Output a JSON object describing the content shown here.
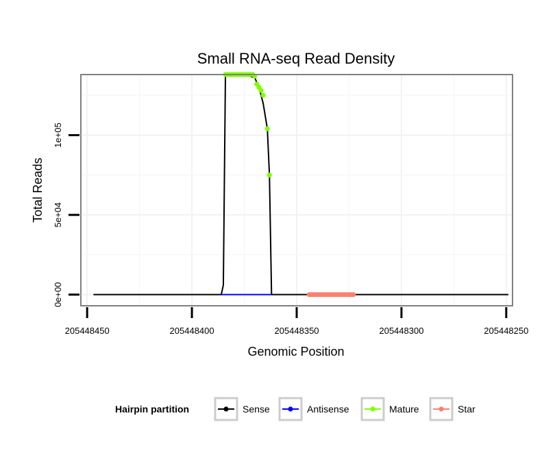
{
  "chart_data": {
    "type": "line",
    "title": "Small RNA-seq Read Density",
    "xlabel": "Genomic Position",
    "ylabel": "Total Reads",
    "xlim": [
      205448453,
      205448247
    ],
    "ylim": [
      -7000,
      138000
    ],
    "x_reversed": true,
    "x_ticks": [
      205448450,
      205448400,
      205448350,
      205448300,
      205448250
    ],
    "x_tick_labels": [
      "205448450",
      "205448400",
      "205448350",
      "205448300",
      "205448250"
    ],
    "y_ticks": [
      0,
      50000,
      100000
    ],
    "y_tick_labels": [
      "0e+00",
      "5e+04",
      "1e+05"
    ],
    "grid": true,
    "legend": {
      "title": "Hairpin partition",
      "position": "bottom",
      "entries": [
        {
          "label": "Sense",
          "color": "#000000"
        },
        {
          "label": "Antisense",
          "color": "#0000ff"
        },
        {
          "label": "Mature",
          "color": "#7fff00"
        },
        {
          "label": "Star",
          "color": "#fa8072"
        }
      ]
    },
    "series": [
      {
        "name": "Sense",
        "color": "#000000",
        "mode": "line",
        "points": [
          [
            205448447,
            0
          ],
          [
            205448386,
            0
          ],
          [
            205448385,
            6000
          ],
          [
            205448384,
            138000
          ],
          [
            205448375,
            138000
          ],
          [
            205448370,
            136000
          ],
          [
            205448368,
            130000
          ],
          [
            205448366,
            120000
          ],
          [
            205448364,
            104000
          ],
          [
            205448363,
            75000
          ],
          [
            205448362,
            0
          ],
          [
            205448249,
            0
          ]
        ]
      },
      {
        "name": "Antisense",
        "color": "#0000ff",
        "mode": "line",
        "points": [
          [
            205448386,
            0
          ],
          [
            205448362,
            0
          ]
        ]
      },
      {
        "name": "Mature",
        "color": "#7fff00",
        "mode": "points",
        "points": [
          [
            205448384,
            138000
          ],
          [
            205448383,
            138000
          ],
          [
            205448382,
            138000
          ],
          [
            205448381,
            138000
          ],
          [
            205448380,
            138000
          ],
          [
            205448379,
            138000
          ],
          [
            205448378,
            138000
          ],
          [
            205448377,
            138000
          ],
          [
            205448376,
            138000
          ],
          [
            205448375,
            138000
          ],
          [
            205448374,
            138000
          ],
          [
            205448373,
            138000
          ],
          [
            205448372,
            138000
          ],
          [
            205448371,
            138000
          ],
          [
            205448370,
            137000
          ],
          [
            205448369,
            132000
          ],
          [
            205448368,
            130000
          ],
          [
            205448367,
            128000
          ],
          [
            205448366,
            125000
          ],
          [
            205448364,
            104000
          ],
          [
            205448363,
            75000
          ]
        ]
      },
      {
        "name": "Star",
        "color": "#fa8072",
        "mode": "points",
        "points": [
          [
            205448344,
            0
          ],
          [
            205448343,
            0
          ],
          [
            205448342,
            0
          ],
          [
            205448341,
            0
          ],
          [
            205448340,
            0
          ],
          [
            205448339,
            0
          ],
          [
            205448338,
            0
          ],
          [
            205448337,
            0
          ],
          [
            205448336,
            0
          ],
          [
            205448335,
            0
          ],
          [
            205448334,
            0
          ],
          [
            205448333,
            0
          ],
          [
            205448332,
            0
          ],
          [
            205448331,
            0
          ],
          [
            205448330,
            0
          ],
          [
            205448329,
            0
          ],
          [
            205448328,
            0
          ],
          [
            205448327,
            0
          ],
          [
            205448326,
            0
          ],
          [
            205448325,
            0
          ],
          [
            205448324,
            0
          ],
          [
            205448323,
            0
          ]
        ]
      }
    ]
  }
}
